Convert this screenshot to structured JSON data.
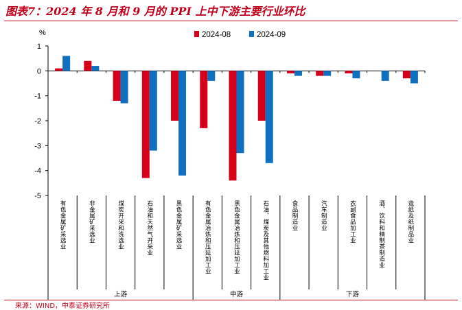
{
  "title": "图表7：2024 年 8 月和 9 月的 PPI 上中下游主要行业环比",
  "source": "来源：WIND，中泰证券研究所",
  "colors": {
    "series1": "#d7001a",
    "series2": "#0f70c0",
    "axis": "#000000",
    "accent": "#c0001a"
  },
  "chart_data": {
    "type": "bar",
    "ylabel": "%",
    "ylim": [
      -5,
      1
    ],
    "yticks": [
      1,
      0,
      -1,
      -2,
      -3,
      -4,
      -5
    ],
    "legend_position": "top",
    "grid": false,
    "categories": [
      "有色金属矿采选业",
      "非金属矿采选业",
      "煤炭开采和洗选业",
      "石油和天然气开采业",
      "黑色金属矿采选业",
      "有色金属冶炼和压延加工业",
      "黑色金属冶炼和压延加工业",
      "石油、煤炭及其他燃料加工业",
      "食品制造业",
      "汽车制造业",
      "农副食品加工业",
      "酒、饮料和精制茶制造业",
      "造纸及纸制品业"
    ],
    "groups": [
      {
        "label": "上游",
        "start": 0,
        "end": 4
      },
      {
        "label": "中游",
        "start": 5,
        "end": 7
      },
      {
        "label": "下游",
        "start": 8,
        "end": 12
      }
    ],
    "series": [
      {
        "name": "2024-08",
        "values": [
          0.1,
          0.4,
          -1.2,
          -4.3,
          -2.0,
          -2.3,
          -4.4,
          -2.0,
          -0.1,
          -0.2,
          -0.1,
          0.0,
          -0.3
        ]
      },
      {
        "name": "2024-09",
        "values": [
          0.6,
          0.2,
          -1.3,
          -3.2,
          -4.2,
          -0.4,
          -3.3,
          -3.7,
          -0.2,
          -0.2,
          -0.3,
          -0.4,
          -0.5
        ]
      }
    ]
  }
}
